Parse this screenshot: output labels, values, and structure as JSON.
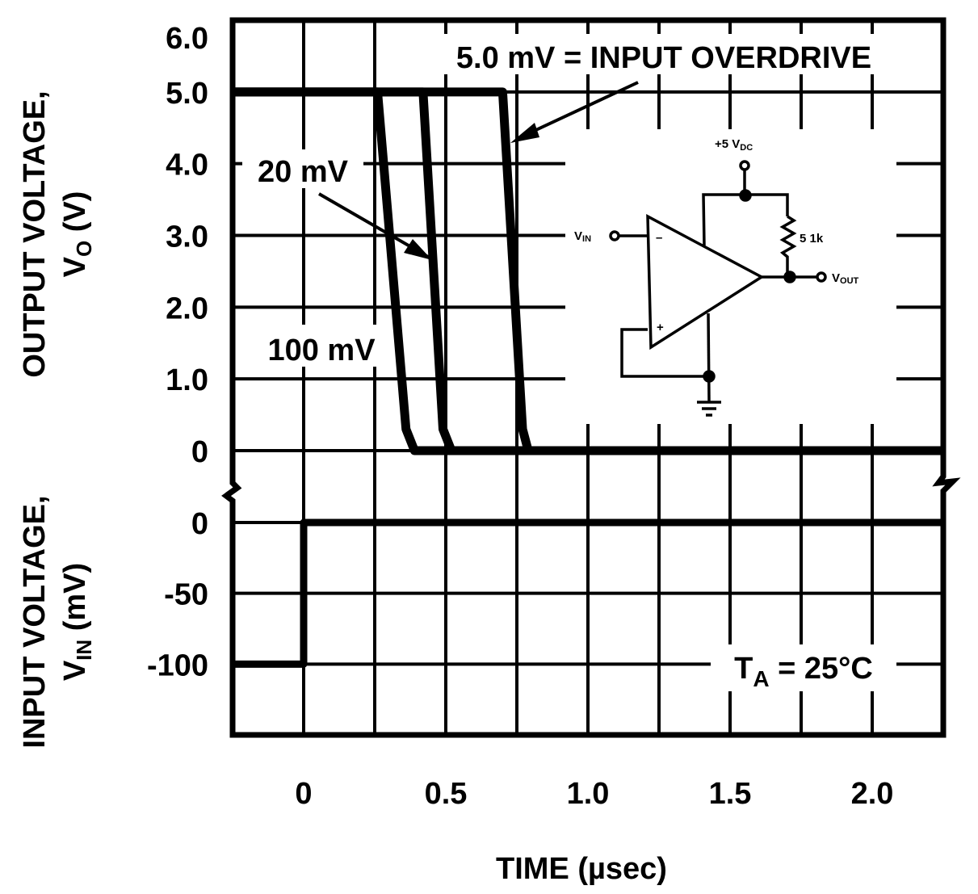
{
  "chart_data": {
    "type": "line",
    "x_axis": {
      "label": "TIME (µsec)",
      "range": [
        -0.25,
        2.25
      ],
      "ticks": [
        0,
        0.5,
        1.0,
        1.5,
        2.0
      ],
      "tick_labels": [
        "0",
        "0.5",
        "1.0",
        "1.5",
        "2.0"
      ],
      "grid_step": 0.25
    },
    "grid": true,
    "colors": {
      "line": "#000000",
      "background": "#ffffff"
    },
    "panels": [
      {
        "id": "output",
        "ylabel_line1": "OUTPUT VOLTAGE,",
        "ylabel_sym": "V",
        "ylabel_sub": "O",
        "ylabel_unit": " (V)",
        "yrange": [
          0,
          6
        ],
        "ticks": [
          6,
          5,
          4,
          3,
          2,
          1,
          0
        ],
        "tick_labels": [
          "6.0",
          "5.0",
          "4.0",
          "3.0",
          "2.0",
          "1.0",
          "0"
        ],
        "series": [
          {
            "name": "100 mV",
            "x": [
              -0.25,
              0.26,
              0.36,
              0.39,
              2.25
            ],
            "y": [
              5,
              5,
              0.3,
              0,
              0
            ]
          },
          {
            "name": "20 mV",
            "x": [
              -0.25,
              0.42,
              0.49,
              0.52,
              2.25
            ],
            "y": [
              5,
              5,
              0.3,
              0,
              0
            ]
          },
          {
            "name": "5.0 mV = INPUT OVERDRIVE",
            "x": [
              -0.25,
              0.7,
              0.77,
              0.79,
              2.25
            ],
            "y": [
              5,
              5,
              0.3,
              0,
              0
            ]
          }
        ]
      },
      {
        "id": "input",
        "ylabel_line1": "INPUT VOLTAGE,",
        "ylabel_sym": "V",
        "ylabel_sub": "IN",
        "ylabel_unit": " (mV)",
        "yrange": [
          -150,
          0
        ],
        "ticks": [
          0,
          -50,
          -100
        ],
        "tick_labels": [
          "0",
          "-50",
          "-100"
        ],
        "series": [
          {
            "name": "input",
            "x": [
              -0.25,
              0,
              0,
              2.25
            ],
            "y": [
              -100,
              -100,
              0,
              0
            ]
          }
        ]
      }
    ],
    "annotations": {
      "overdrive_5": "5.0 mV = INPUT OVERDRIVE",
      "overdrive_20": "20 mV",
      "overdrive_100": "100 mV",
      "temperature_sym": "T",
      "temperature_sub": "A",
      "temperature_val": " = 25°C"
    },
    "circuit": {
      "supply_label": "+5 V",
      "supply_sub": "DC",
      "resistor_label": "5 1k",
      "input_label": "V",
      "input_sub": "IN",
      "output_label": "V",
      "output_sub": "OUT",
      "minus": "–",
      "plus": "+"
    }
  }
}
